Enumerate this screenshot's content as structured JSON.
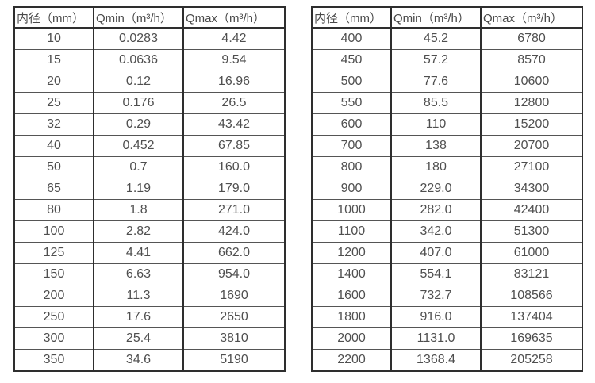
{
  "colors": {
    "background": "#ffffff",
    "border_strong": "#2e2e2e",
    "border_light": "#555555",
    "text": "#4f4f4f"
  },
  "chart_data": [
    {
      "type": "table",
      "title": "",
      "columns": [
        "内径（mm）",
        "Qmin（m³/h）",
        "Qmax（m³/h）"
      ],
      "rows": [
        [
          "10",
          "0.0283",
          "4.42"
        ],
        [
          "15",
          "0.0636",
          "9.54"
        ],
        [
          "20",
          "0.12",
          "16.96"
        ],
        [
          "25",
          "0.176",
          "26.5"
        ],
        [
          "32",
          "0.29",
          "43.42"
        ],
        [
          "40",
          "0.452",
          "67.85"
        ],
        [
          "50",
          "0.7",
          "160.0"
        ],
        [
          "65",
          "1.19",
          "179.0"
        ],
        [
          "80",
          "1.8",
          "271.0"
        ],
        [
          "100",
          "2.82",
          "424.0"
        ],
        [
          "125",
          "4.41",
          "662.0"
        ],
        [
          "150",
          "6.63",
          "954.0"
        ],
        [
          "200",
          "11.3",
          "1690"
        ],
        [
          "250",
          "17.6",
          "2650"
        ],
        [
          "300",
          "25.4",
          "3810"
        ],
        [
          "350",
          "34.6",
          "5190"
        ]
      ]
    },
    {
      "type": "table",
      "title": "",
      "columns": [
        "内径（mm）",
        "Qmin（m³/h）",
        "Qmax（m³/h）"
      ],
      "rows": [
        [
          "400",
          "45.2",
          "6780"
        ],
        [
          "450",
          "57.2",
          "8570"
        ],
        [
          "500",
          "77.6",
          "10600"
        ],
        [
          "550",
          "85.5",
          "12800"
        ],
        [
          "600",
          "110",
          "15200"
        ],
        [
          "700",
          "138",
          "20700"
        ],
        [
          "800",
          "180",
          "27100"
        ],
        [
          "900",
          "229.0",
          "34300"
        ],
        [
          "1000",
          "282.0",
          "42400"
        ],
        [
          "1100",
          "342.0",
          "51300"
        ],
        [
          "1200",
          "407.0",
          "61000"
        ],
        [
          "1400",
          "554.1",
          "83121"
        ],
        [
          "1600",
          "732.7",
          "108566"
        ],
        [
          "1800",
          "916.0",
          "137404"
        ],
        [
          "2000",
          "1131.0",
          "169635"
        ],
        [
          "2200",
          "1368.4",
          "205258"
        ]
      ]
    }
  ]
}
